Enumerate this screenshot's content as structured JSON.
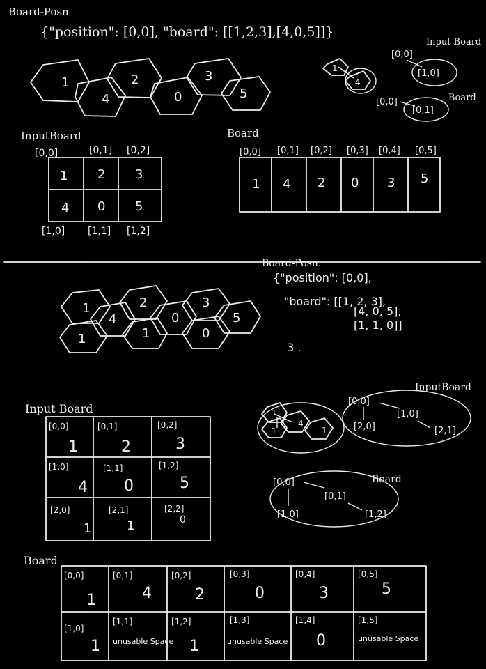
{
  "top": {
    "title": "Board-Posn",
    "json_text": "{\"position\": [0,0], \"board\": [[1,2,3],[4,0,5]]}",
    "hexes": [
      "1",
      "4",
      "2",
      "0",
      "3",
      "5"
    ],
    "mini_hexes": [
      "1",
      "4"
    ],
    "input_board_label": "Input Board",
    "input_graph": {
      "from": "[0,0]",
      "to": "[1,0]"
    },
    "board_label": "Board",
    "board_graph": {
      "from": "[0,0]",
      "to": "[0,1]"
    },
    "input_table": {
      "label": "InputBoard",
      "top_coords": [
        "[0,0]",
        "[0,1]",
        "[0,2]"
      ],
      "bottom_coords": [
        "[1,0]",
        "[1,1]",
        "[1,2]"
      ],
      "rows": [
        [
          "1",
          "2",
          "3"
        ],
        [
          "4",
          "0",
          "5"
        ]
      ]
    },
    "board_table": {
      "label": "Board",
      "coords": [
        "[0,0]",
        "[0,1]",
        "[0,2]",
        "[0,3]",
        "[0,4]",
        "[0,5]"
      ],
      "cells": [
        "1",
        "4",
        "2",
        "0",
        "3",
        "5"
      ]
    }
  },
  "bottom": {
    "title": "Board-Posn.",
    "json_lines": [
      "{\"position\": [0,0],",
      "\"board\": [[1, 2, 3],",
      "[4, 0, 5],",
      "[1, 1, 0]]"
    ],
    "trailing_mark": "3 .",
    "hexes_top": [
      "1",
      "4",
      "2",
      "1",
      "0",
      "3",
      "0",
      "5"
    ],
    "hexes_bottom": [
      "1"
    ],
    "mini_hexes": [
      "1",
      "4",
      "1",
      "1"
    ],
    "input_board_label": "InputBoard",
    "input_graph": {
      "root": "[0,0]",
      "a": "[2,0]",
      "b": "[1,0]",
      "c": "[2,1]"
    },
    "board_label": "Board",
    "board_graph": {
      "root": "[0,0]",
      "a": "[1,0]",
      "b": "[0,1]",
      "c": "[1,2]"
    },
    "input_table": {
      "label": "Input Board",
      "rows": [
        [
          {
            "coord": "[0,0]",
            "val": "1"
          },
          {
            "coord": "[0,1]",
            "val": "2"
          },
          {
            "coord": "[0,2]",
            "val": "3"
          }
        ],
        [
          {
            "coord": "[1,0]",
            "val": "4"
          },
          {
            "coord": "[1,1]",
            "val": "0"
          },
          {
            "coord": "[1,2]",
            "val": "5"
          }
        ],
        [
          {
            "coord": "[2,0]",
            "val": "1"
          },
          {
            "coord": "[2,1]",
            "val": "1"
          },
          {
            "coord": "[2,2]",
            "val": "0"
          }
        ]
      ]
    },
    "board_table": {
      "label": "Board",
      "rows": [
        [
          {
            "coord": "[0,0]",
            "val": "1"
          },
          {
            "coord": "[0,1]",
            "val": "4"
          },
          {
            "coord": "[0,2]",
            "val": "2"
          },
          {
            "coord": "[0,3]",
            "val": "0"
          },
          {
            "coord": "[0,4]",
            "val": "3"
          },
          {
            "coord": "[0,5]",
            "val": "5"
          }
        ],
        [
          {
            "coord": "[1,0]",
            "val": "1"
          },
          {
            "coord": "[1,1]",
            "val": "unusable Space"
          },
          {
            "coord": "[1,2]",
            "val": "1"
          },
          {
            "coord": "[1,3]",
            "val": "unusable Space"
          },
          {
            "coord": "[1,4]",
            "val": "0"
          },
          {
            "coord": "[1,5]",
            "val": "unusable Space"
          }
        ]
      ]
    }
  }
}
